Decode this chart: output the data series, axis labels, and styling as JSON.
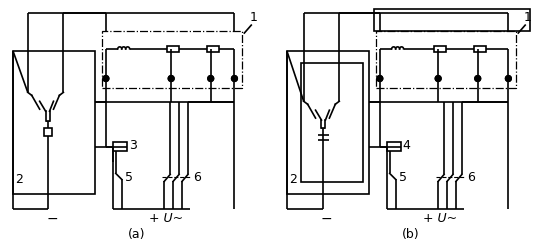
{
  "label_a": "(a)",
  "label_b": "(b)",
  "label_1": "1",
  "label_2": "2",
  "label_3": "3",
  "label_4": "4",
  "label_5": "5",
  "label_6": "6",
  "label_minus": "−",
  "label_plus": "+ U~",
  "lw": 1.2
}
